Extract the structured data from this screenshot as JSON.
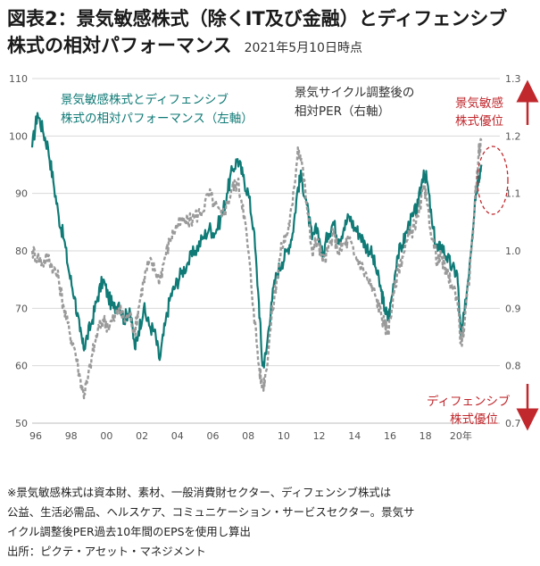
{
  "title": {
    "line1": "図表2：景気敏感株式（除くIT及び金融）とディフェンシブ",
    "line2": "株式の相対パフォーマンス",
    "date": "2021年5月10日時点"
  },
  "chart_data": {
    "type": "line",
    "series": [
      {
        "name": "景気敏感株式とディフェンシブ株式の相対パフォーマンス（左軸）",
        "axis": "left",
        "color": "#0f7a76",
        "style": "solid",
        "points": [
          [
            1996.0,
            98
          ],
          [
            1996.3,
            104
          ],
          [
            1996.6,
            101
          ],
          [
            1996.9,
            98
          ],
          [
            1997.2,
            92
          ],
          [
            1997.5,
            86
          ],
          [
            1997.8,
            82
          ],
          [
            1998.1,
            76
          ],
          [
            1998.4,
            72
          ],
          [
            1998.7,
            66
          ],
          [
            1998.9,
            63
          ],
          [
            1999.1,
            65
          ],
          [
            1999.4,
            68
          ],
          [
            1999.7,
            72
          ],
          [
            2000.0,
            75
          ],
          [
            2000.3,
            72
          ],
          [
            2000.6,
            70
          ],
          [
            2000.9,
            71
          ],
          [
            2001.2,
            68
          ],
          [
            2001.5,
            70
          ],
          [
            2001.8,
            63
          ],
          [
            2002.0,
            66
          ],
          [
            2002.3,
            70
          ],
          [
            2002.6,
            67
          ],
          [
            2002.9,
            66
          ],
          [
            2003.2,
            61
          ],
          [
            2003.5,
            67
          ],
          [
            2003.8,
            72
          ],
          [
            2004.1,
            74
          ],
          [
            2004.4,
            76
          ],
          [
            2004.8,
            78
          ],
          [
            2005.2,
            80
          ],
          [
            2005.6,
            82
          ],
          [
            2006.0,
            84
          ],
          [
            2006.3,
            83
          ],
          [
            2006.7,
            86
          ],
          [
            2007.0,
            90
          ],
          [
            2007.3,
            94
          ],
          [
            2007.6,
            96
          ],
          [
            2007.9,
            93
          ],
          [
            2008.2,
            90
          ],
          [
            2008.5,
            84
          ],
          [
            2008.8,
            71
          ],
          [
            2009.0,
            60
          ],
          [
            2009.2,
            62
          ],
          [
            2009.5,
            71
          ],
          [
            2009.8,
            76
          ],
          [
            2010.1,
            78
          ],
          [
            2010.4,
            80
          ],
          [
            2010.7,
            83
          ],
          [
            2011.0,
            91
          ],
          [
            2011.2,
            93
          ],
          [
            2011.5,
            88
          ],
          [
            2011.8,
            82
          ],
          [
            2012.1,
            84
          ],
          [
            2012.4,
            79
          ],
          [
            2012.7,
            83
          ],
          [
            2013.0,
            85
          ],
          [
            2013.3,
            82
          ],
          [
            2013.6,
            84
          ],
          [
            2013.9,
            86
          ],
          [
            2014.2,
            84
          ],
          [
            2014.5,
            83
          ],
          [
            2014.8,
            81
          ],
          [
            2015.1,
            80
          ],
          [
            2015.4,
            77
          ],
          [
            2015.7,
            73
          ],
          [
            2015.9,
            70
          ],
          [
            2016.1,
            68
          ],
          [
            2016.3,
            72
          ],
          [
            2016.6,
            79
          ],
          [
            2016.9,
            81
          ],
          [
            2017.2,
            84
          ],
          [
            2017.5,
            86
          ],
          [
            2017.8,
            88
          ],
          [
            2018.1,
            94
          ],
          [
            2018.3,
            92
          ],
          [
            2018.6,
            84
          ],
          [
            2018.9,
            80
          ],
          [
            2019.1,
            81
          ],
          [
            2019.4,
            79
          ],
          [
            2019.7,
            77
          ],
          [
            2020.0,
            76
          ],
          [
            2020.2,
            65
          ],
          [
            2020.4,
            69
          ],
          [
            2020.7,
            78
          ],
          [
            2021.0,
            89
          ],
          [
            2021.2,
            93
          ],
          [
            2021.36,
            95
          ]
        ]
      },
      {
        "name": "景気サイクル調整後の相対PER（右軸）",
        "axis": "right",
        "color": "#9a9a9a",
        "style": "dashed",
        "points": [
          [
            1996.0,
            1.0
          ],
          [
            1996.3,
            0.99
          ],
          [
            1996.6,
            0.98
          ],
          [
            1996.9,
            0.99
          ],
          [
            1997.2,
            0.97
          ],
          [
            1997.5,
            0.95
          ],
          [
            1997.8,
            0.9
          ],
          [
            1998.1,
            0.86
          ],
          [
            1998.4,
            0.83
          ],
          [
            1998.7,
            0.78
          ],
          [
            1998.9,
            0.75
          ],
          [
            1999.1,
            0.77
          ],
          [
            1999.4,
            0.82
          ],
          [
            1999.7,
            0.86
          ],
          [
            2000.0,
            0.88
          ],
          [
            2000.3,
            0.87
          ],
          [
            2000.6,
            0.88
          ],
          [
            2000.9,
            0.9
          ],
          [
            2001.2,
            0.88
          ],
          [
            2001.5,
            0.89
          ],
          [
            2001.8,
            0.86
          ],
          [
            2002.0,
            0.9
          ],
          [
            2002.3,
            0.95
          ],
          [
            2002.6,
            0.98
          ],
          [
            2002.9,
            0.97
          ],
          [
            2003.2,
            0.95
          ],
          [
            2003.5,
            0.99
          ],
          [
            2003.8,
            1.02
          ],
          [
            2004.1,
            1.04
          ],
          [
            2004.4,
            1.05
          ],
          [
            2004.8,
            1.05
          ],
          [
            2005.2,
            1.06
          ],
          [
            2005.6,
            1.07
          ],
          [
            2006.0,
            1.1
          ],
          [
            2006.3,
            1.08
          ],
          [
            2006.7,
            1.06
          ],
          [
            2007.0,
            1.08
          ],
          [
            2007.3,
            1.11
          ],
          [
            2007.6,
            1.12
          ],
          [
            2007.9,
            1.08
          ],
          [
            2008.2,
            1.0
          ],
          [
            2008.5,
            0.9
          ],
          [
            2008.8,
            0.8
          ],
          [
            2009.0,
            0.76
          ],
          [
            2009.2,
            0.79
          ],
          [
            2009.5,
            0.88
          ],
          [
            2009.8,
            0.95
          ],
          [
            2010.1,
            1.01
          ],
          [
            2010.4,
            1.03
          ],
          [
            2010.7,
            1.08
          ],
          [
            2011.0,
            1.18
          ],
          [
            2011.2,
            1.16
          ],
          [
            2011.5,
            1.08
          ],
          [
            2011.8,
            1.0
          ],
          [
            2012.1,
            1.02
          ],
          [
            2012.4,
            0.98
          ],
          [
            2012.7,
            1.0
          ],
          [
            2013.0,
            1.03
          ],
          [
            2013.3,
            1.0
          ],
          [
            2013.6,
            1.01
          ],
          [
            2013.9,
            1.02
          ],
          [
            2014.2,
            0.99
          ],
          [
            2014.5,
            0.98
          ],
          [
            2014.8,
            0.96
          ],
          [
            2015.1,
            0.94
          ],
          [
            2015.4,
            0.92
          ],
          [
            2015.7,
            0.89
          ],
          [
            2015.9,
            0.87
          ],
          [
            2016.1,
            0.86
          ],
          [
            2016.3,
            0.9
          ],
          [
            2016.6,
            0.96
          ],
          [
            2016.9,
            0.99
          ],
          [
            2017.2,
            1.02
          ],
          [
            2017.5,
            1.04
          ],
          [
            2017.8,
            1.06
          ],
          [
            2018.1,
            1.11
          ],
          [
            2018.3,
            1.08
          ],
          [
            2018.6,
            1.02
          ],
          [
            2018.9,
            0.98
          ],
          [
            2019.1,
            0.99
          ],
          [
            2019.4,
            0.96
          ],
          [
            2019.7,
            0.94
          ],
          [
            2020.0,
            0.92
          ],
          [
            2020.2,
            0.84
          ],
          [
            2020.4,
            0.87
          ],
          [
            2020.7,
            0.96
          ],
          [
            2021.0,
            1.09
          ],
          [
            2021.2,
            1.17
          ],
          [
            2021.36,
            1.19
          ]
        ]
      }
    ],
    "left_axis": {
      "ylim": [
        50,
        110
      ],
      "ticks": [
        "50",
        "60",
        "70",
        "80",
        "90",
        "100",
        "110"
      ],
      "tick_values": [
        50,
        60,
        70,
        80,
        90,
        100,
        110
      ]
    },
    "right_axis": {
      "ylim": [
        0.7,
        1.3
      ],
      "ticks": [
        "0.7",
        "0.8",
        "0.9",
        "1.0",
        "1.1",
        "1.2",
        "1.3"
      ],
      "tick_values": [
        0.7,
        0.8,
        0.9,
        1.0,
        1.1,
        1.2,
        1.3
      ]
    },
    "x_axis": {
      "xlim": [
        1996,
        2022.4
      ],
      "ticks": [
        "96",
        "98",
        "00",
        "02",
        "04",
        "06",
        "08",
        "10",
        "12",
        "14",
        "16",
        "18",
        "20年"
      ],
      "tick_values": [
        1996,
        1998,
        2000,
        2002,
        2004,
        2006,
        2008,
        2010,
        2012,
        2014,
        2016,
        2018,
        2020
      ]
    },
    "grid": "horizontal",
    "annotations": {
      "green_label": [
        "景気敏感株式とディフェンシブ",
        "株式の相対パフォーマンス（左軸）"
      ],
      "gray_label": [
        "景気サイクル調整後の",
        "相対PER（右軸）"
      ],
      "upper_right": [
        "景気敏感",
        "株式優位"
      ],
      "lower_right": [
        "ディフェンシブ",
        "株式優位"
      ],
      "highlight": "latest values circled"
    }
  },
  "footnote": {
    "line1": "※景気敏感株式は資本財、素材、一般消費財セクター、ディフェンシブ株式は",
    "line2": "公益、生活必需品、ヘルスケア、コミュニケーション・サービスセクター。景気サ",
    "line3": "イクル調整後PER過去10年間のEPSを使用し算出",
    "line4": "出所：ピクテ・アセット・マネジメント"
  }
}
